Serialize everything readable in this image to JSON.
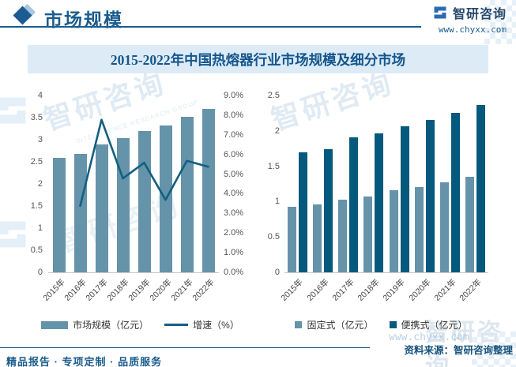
{
  "header": {
    "title": "市场规模",
    "logo_name": "智研咨询",
    "logo_url": "www.chyxx.com"
  },
  "chart_title": "2015-2022年中国热熔器行业市场规模及细分市场",
  "colors": {
    "bar_light": "#6593aa",
    "bar_dark": "#05597c",
    "line": "#136080",
    "accent_blue": "#1b5c8e",
    "band_bg": "#dcebf6"
  },
  "chart_data": [
    {
      "type": "bar",
      "subtype": "bar+line combo",
      "categories": [
        "2015年",
        "2016年",
        "2017年",
        "2018年",
        "2019年",
        "2020年",
        "2021年",
        "2022年"
      ],
      "series": [
        {
          "name": "市场规模（亿元）",
          "type": "bar",
          "axis": "left",
          "values": [
            2.61,
            2.7,
            2.91,
            3.05,
            3.22,
            3.34,
            3.53,
            3.72
          ]
        },
        {
          "name": "增速（%）",
          "type": "line",
          "axis": "right",
          "values": [
            null,
            3.4,
            7.8,
            4.8,
            5.6,
            3.7,
            5.7,
            5.4
          ]
        }
      ],
      "left_axis": {
        "min": 0,
        "max": 4,
        "ticks": [
          "4",
          "3.5",
          "3",
          "2.5",
          "2",
          "1.5",
          "1",
          "0.5",
          "0"
        ]
      },
      "right_axis": {
        "min": 0,
        "max": 9,
        "ticks": [
          "9.0%",
          "8.0%",
          "7.0%",
          "6.0%",
          "5.0%",
          "4.0%",
          "3.0%",
          "2.0%",
          "1.0%",
          "0.0%"
        ]
      },
      "grid": false,
      "legend_position": "bottom"
    },
    {
      "type": "bar",
      "subtype": "grouped",
      "categories": [
        "2015年",
        "2016年",
        "2017年",
        "2018年",
        "2019年",
        "2020年",
        "2021年",
        "2022年"
      ],
      "series": [
        {
          "name": "固定式（亿元）",
          "values": [
            0.93,
            0.97,
            1.03,
            1.08,
            1.17,
            1.21,
            1.28,
            1.36
          ]
        },
        {
          "name": "便携式（亿元）",
          "values": [
            1.7,
            1.75,
            1.92,
            1.97,
            2.07,
            2.16,
            2.27,
            2.38
          ]
        }
      ],
      "y_axis": {
        "min": 0,
        "max": 2.5,
        "ticks": [
          "2.5",
          "2",
          "1.5",
          "1",
          "0.5",
          "0"
        ]
      },
      "grid": false,
      "legend_position": "bottom"
    }
  ],
  "footer": {
    "source": "资料来源：智研咨询整理",
    "services": "精品报告 · 专项定制 · 品质服务"
  },
  "watermarks": {
    "cn": "智研咨询",
    "en": "INTELLIGENCE RESEARCH GROUP",
    "url": "www.chyxx.com"
  }
}
